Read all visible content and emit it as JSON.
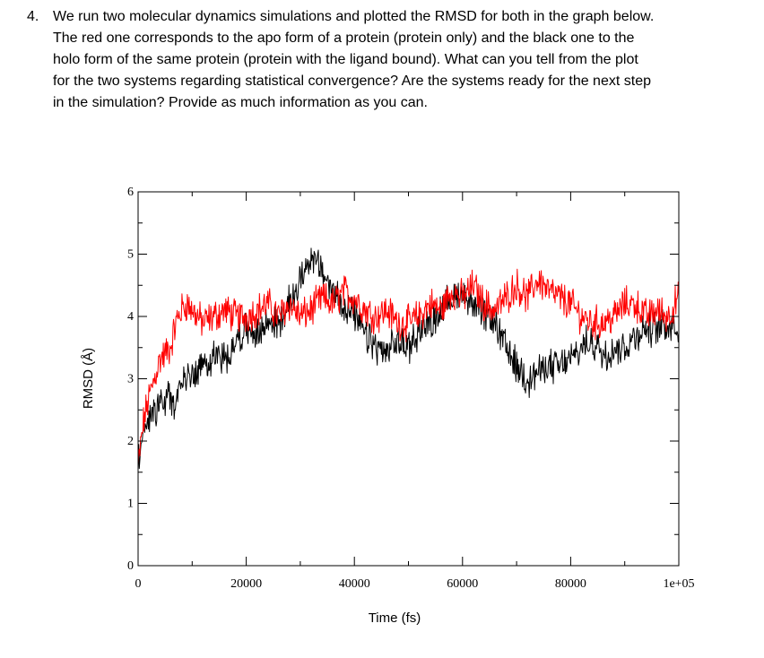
{
  "question": {
    "number": "4.",
    "lines": [
      "We run two molecular dynamics simulations and plotted the RMSD for both in the graph below.",
      "The red one corresponds to the apo form of a protein (protein only) and the black one to the",
      "holo form of the same protein (protein with the ligand bound). What can you tell from the plot",
      "for the two systems regarding statistical convergence? Are the systems ready for the next step",
      "in the simulation? Provide as much information as you can."
    ]
  },
  "chart_data": {
    "type": "line",
    "title": "",
    "xlabel": "Time (fs)",
    "ylabel": "RMSD (Å)",
    "xlim": [
      0,
      100000
    ],
    "ylim": [
      0,
      6
    ],
    "x_ticks": [
      0,
      20000,
      40000,
      60000,
      80000,
      100000
    ],
    "x_tick_labels": [
      "0",
      "20000",
      "40000",
      "60000",
      "80000",
      "1e+05"
    ],
    "y_ticks": [
      0,
      1,
      2,
      3,
      4,
      5,
      6
    ],
    "y_tick_labels": [
      "0",
      "1",
      "2",
      "3",
      "4",
      "5",
      "6"
    ],
    "legend": "none",
    "series": [
      {
        "name": "apo (protein only)",
        "color": "#ff0000",
        "x": [
          0,
          1000,
          2000,
          3000,
          4000,
          5000,
          6000,
          7000,
          8000,
          9000,
          10000,
          12000,
          14000,
          16000,
          18000,
          20000,
          22000,
          24000,
          26000,
          28000,
          30000,
          32000,
          34000,
          36000,
          38000,
          40000,
          42000,
          44000,
          46000,
          48000,
          50000,
          52000,
          54000,
          56000,
          58000,
          60000,
          62000,
          64000,
          66000,
          68000,
          70000,
          72000,
          74000,
          76000,
          78000,
          80000,
          82000,
          84000,
          86000,
          88000,
          90000,
          92000,
          94000,
          96000,
          98000,
          100000
        ],
        "values": [
          1.6,
          2.3,
          2.7,
          3.0,
          3.3,
          3.4,
          3.5,
          3.9,
          4.1,
          4.2,
          4.1,
          3.9,
          4.0,
          4.1,
          4.0,
          4.0,
          4.1,
          4.2,
          4.0,
          4.2,
          4.0,
          4.1,
          4.3,
          4.2,
          4.4,
          4.3,
          4.1,
          4.0,
          4.1,
          3.9,
          3.9,
          4.0,
          4.2,
          4.1,
          4.4,
          4.3,
          4.5,
          4.2,
          4.1,
          4.3,
          4.5,
          4.3,
          4.6,
          4.4,
          4.3,
          4.2,
          4.0,
          3.9,
          3.9,
          4.0,
          4.2,
          4.2,
          4.0,
          4.1,
          4.0,
          4.3
        ]
      },
      {
        "name": "holo (protein with ligand)",
        "color": "#000000",
        "x": [
          0,
          1000,
          2000,
          3000,
          4000,
          5000,
          6000,
          7000,
          8000,
          9000,
          10000,
          12000,
          14000,
          16000,
          18000,
          20000,
          22000,
          24000,
          26000,
          28000,
          30000,
          32000,
          34000,
          36000,
          38000,
          40000,
          42000,
          44000,
          46000,
          48000,
          50000,
          52000,
          54000,
          56000,
          58000,
          60000,
          62000,
          64000,
          66000,
          68000,
          70000,
          72000,
          74000,
          76000,
          78000,
          80000,
          82000,
          84000,
          86000,
          88000,
          90000,
          92000,
          94000,
          96000,
          98000,
          100000
        ],
        "values": [
          1.7,
          2.1,
          2.4,
          2.5,
          2.6,
          2.6,
          2.7,
          2.6,
          2.9,
          3.0,
          3.1,
          3.2,
          3.4,
          3.3,
          3.6,
          3.8,
          3.7,
          3.9,
          3.9,
          4.2,
          4.6,
          5.0,
          4.7,
          4.4,
          4.2,
          4.0,
          3.7,
          3.5,
          3.4,
          3.6,
          3.5,
          3.8,
          3.9,
          4.1,
          4.3,
          4.4,
          4.2,
          4.0,
          3.9,
          3.5,
          3.2,
          3.0,
          3.1,
          3.2,
          3.2,
          3.3,
          3.5,
          3.6,
          3.4,
          3.5,
          3.5,
          3.7,
          3.8,
          3.8,
          3.9,
          3.8
        ]
      }
    ]
  }
}
